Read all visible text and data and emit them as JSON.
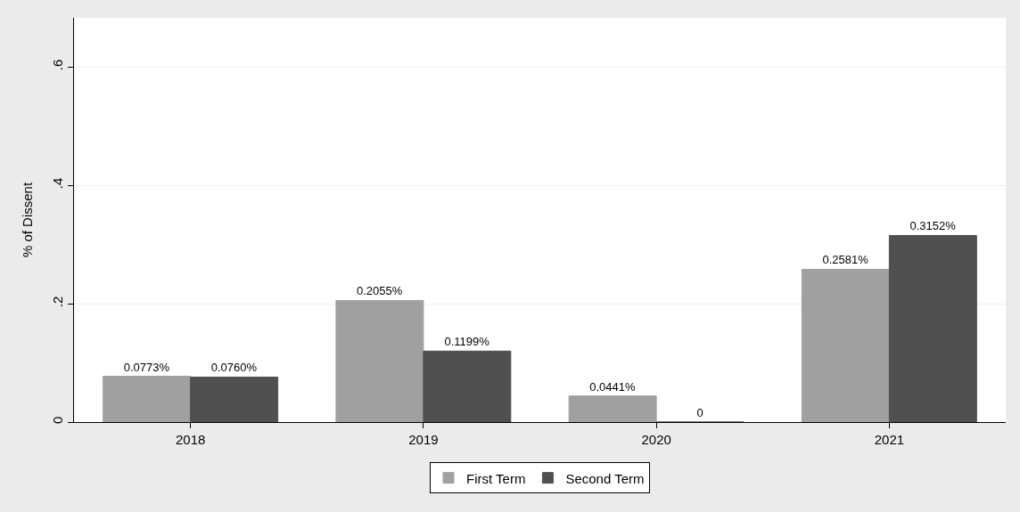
{
  "chart_data": {
    "type": "bar",
    "ylabel": "% of Dissent",
    "categories": [
      "2018",
      "2019",
      "2020",
      "2021"
    ],
    "series": [
      {
        "name": "First Term",
        "color": "#a0a0a0",
        "values": [
          0.0773,
          0.2055,
          0.0441,
          0.2581
        ],
        "value_labels": [
          "0.0773%",
          "0.2055%",
          "0.0441%",
          "0.2581%"
        ]
      },
      {
        "name": "Second Term",
        "color": "#505050",
        "values": [
          0.076,
          0.1199,
          0,
          0.3152
        ],
        "value_labels": [
          "0.0760%",
          "0.1199%",
          "0",
          "0.3152%"
        ]
      }
    ],
    "ylim": [
      0,
      0.683
    ],
    "yticks": [
      {
        "value": 0,
        "label": "0"
      },
      {
        "value": 0.2,
        "label": ".2"
      },
      {
        "value": 0.4,
        "label": ".4"
      },
      {
        "value": 0.6,
        "label": ".6"
      }
    ],
    "grid": "y",
    "legend": "bottom"
  }
}
